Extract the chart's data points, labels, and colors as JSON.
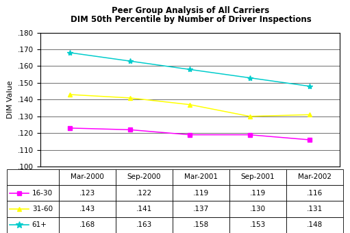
{
  "title_line1": "Peer Group Analysis of All Carriers",
  "title_line2": "DIM 50th Percentile by Number of Driver Inspections",
  "ylabel": "DIM Value",
  "x_labels": [
    "Mar-2000",
    "Sep-2000",
    "Mar-2001",
    "Sep-2001",
    "Mar-2002"
  ],
  "ylim": [
    0.1,
    0.18
  ],
  "yticks": [
    0.1,
    0.11,
    0.12,
    0.13,
    0.14,
    0.15,
    0.16,
    0.17,
    0.18
  ],
  "series": [
    {
      "label": "16-30",
      "values": [
        0.123,
        0.122,
        0.119,
        0.119,
        0.116
      ],
      "color": "#FF00FF",
      "marker": "s",
      "markersize": 4
    },
    {
      "label": "31-60",
      "values": [
        0.143,
        0.141,
        0.137,
        0.13,
        0.131
      ],
      "color": "#FFFF00",
      "marker": "^",
      "markersize": 5
    },
    {
      "label": "61+",
      "values": [
        0.168,
        0.163,
        0.158,
        0.153,
        0.148
      ],
      "color": "#00CCCC",
      "marker": "*",
      "markersize": 6
    }
  ],
  "col_headers": [
    "Mar-2000",
    "Sep-2000",
    "Mar-2001",
    "Sep-2001",
    "Mar-2002"
  ],
  "table_rows": [
    {
      "label": "16-30",
      "values": [
        ".123",
        ".122",
        ".119",
        ".119",
        ".116"
      ],
      "color": "#FF00FF",
      "marker": "s"
    },
    {
      "label": "31-60",
      "values": [
        ".143",
        ".141",
        ".137",
        ".130",
        ".131"
      ],
      "color": "#FFFF00",
      "marker": "^"
    },
    {
      "label": "61+",
      "values": [
        ".168",
        ".163",
        ".158",
        ".153",
        ".148"
      ],
      "color": "#00CCCC",
      "marker": "*"
    }
  ],
  "bg_color": "#FFFFFF",
  "title_fontsize": 8.5,
  "tick_fontsize": 7.5,
  "ylabel_fontsize": 8,
  "table_fontsize": 7.5
}
